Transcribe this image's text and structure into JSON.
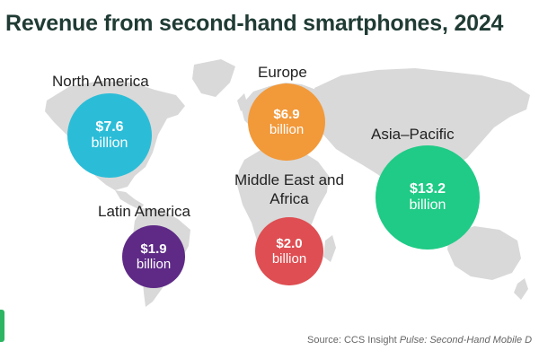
{
  "title": "Revenue from second-hand smartphones, 2024",
  "source": {
    "prefix": "Source: CCS Insight ",
    "publication": "Pulse: Second-Hand Mobile D"
  },
  "map_color": "#d9d9d9",
  "regions": [
    {
      "key": "north-america",
      "label": "North America",
      "value": "$7.6",
      "unit": "billion",
      "color": "#2bbdd8"
    },
    {
      "key": "europe",
      "label": "Europe",
      "value": "$6.9",
      "unit": "billion",
      "color": "#f2993a"
    },
    {
      "key": "asia-pacific",
      "label": "Asia–Pacific",
      "value": "$13.2",
      "unit": "billion",
      "color": "#1fcb86"
    },
    {
      "key": "latin-america",
      "label": "Latin America",
      "value": "$1.9",
      "unit": "billion",
      "color": "#5e2a86"
    },
    {
      "key": "middle-east-africa",
      "label": "Middle East and Africa",
      "value": "$2.0",
      "unit": "billion",
      "color": "#de4e52"
    }
  ]
}
